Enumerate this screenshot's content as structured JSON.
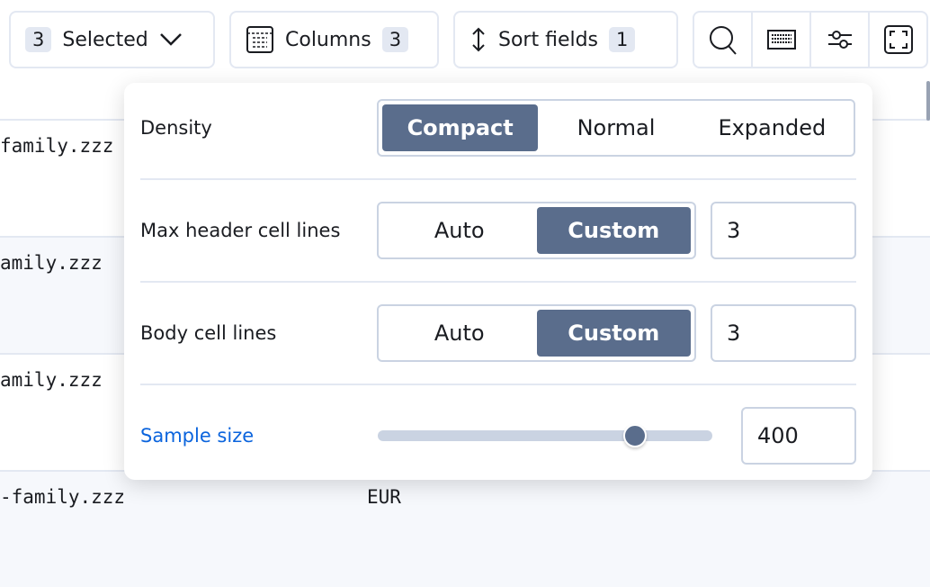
{
  "toolbar": {
    "selected_count": "3",
    "selected_label": "Selected",
    "columns_label": "Columns",
    "columns_count": "3",
    "sort_label": "Sort fields",
    "sort_count": "1"
  },
  "rows": [
    {
      "text": "family.zzz"
    },
    {
      "text": "amily.zzz"
    },
    {
      "text": "amily.zzz"
    },
    {
      "text": "-family.zzz",
      "currency": "EUR"
    }
  ],
  "popover": {
    "density": {
      "label": "Density",
      "options": [
        "Compact",
        "Normal",
        "Expanded"
      ],
      "selected": "Compact"
    },
    "header_lines": {
      "label": "Max header cell lines",
      "options": [
        "Auto",
        "Custom"
      ],
      "selected": "Custom",
      "value": "3"
    },
    "body_lines": {
      "label": "Body cell lines",
      "options": [
        "Auto",
        "Custom"
      ],
      "selected": "Custom",
      "value": "3"
    },
    "sample": {
      "label": "Sample size",
      "value": "400",
      "slider_fraction": 0.77,
      "label_color": "#0b64dd"
    }
  },
  "colors": {
    "accent": "#5a6d8c",
    "border": "#cad3e2"
  }
}
